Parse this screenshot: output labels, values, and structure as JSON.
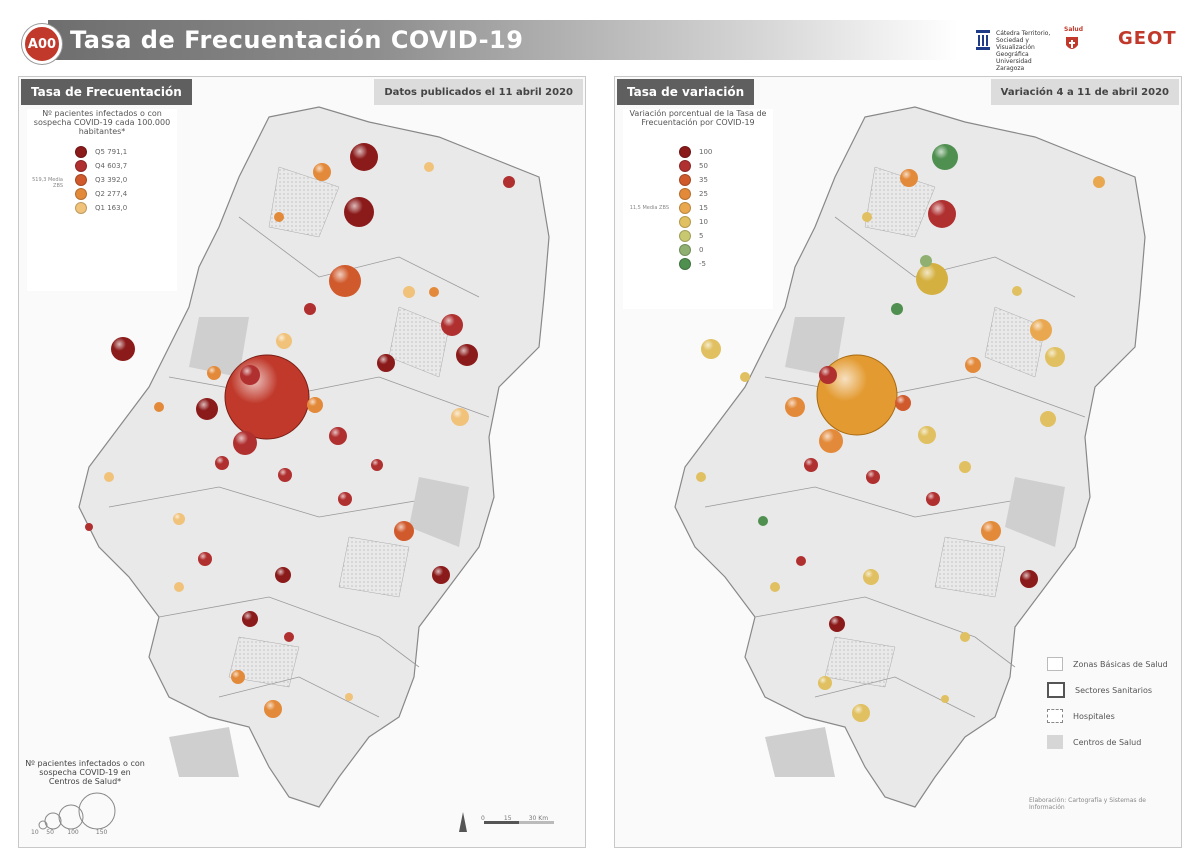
{
  "header": {
    "code": "A00",
    "title": "Tasa de Frecuentación COVID-19",
    "logo_catedra": "Cátedra Territorio, Sociedad y Visualización Geográfica Universidad Zaragoza",
    "logo_salud": "Salud",
    "logo_geot": "GEOT"
  },
  "left_panel": {
    "tag": "Tasa de Frecuentación",
    "date": "Datos publicados el 11 abril 2020",
    "legend_title": "Nº pacientes infectados o con sospecha COVID-19 cada 100.000 habitantes*",
    "median_label": "519,3 Media ZBS",
    "quantiles": [
      {
        "label": "Q5 791,1",
        "color": "#8b1a1a"
      },
      {
        "label": "Q4 603,7",
        "color": "#b03030"
      },
      {
        "label": "Q3 392,0",
        "color": "#d05a2c"
      },
      {
        "label": "Q2 277,4",
        "color": "#e38a3a"
      },
      {
        "label": "Q1 163,0",
        "color": "#f0c27a"
      }
    ],
    "note": "Nº pacientes infectados o con sospecha COVID-19 en Centros de Salud*",
    "size_legend": [
      "10",
      "50",
      "100",
      "150"
    ],
    "scale": [
      "0",
      "15",
      "30 Km"
    ]
  },
  "right_panel": {
    "tag": "Tasa de variación",
    "date": "Variación 4 a 11 de abril 2020",
    "legend_title": "Variación porcentual de la Tasa de Frecuentación por COVID-19",
    "median_label": "11,5 Media ZBS",
    "classes": [
      {
        "label": "100",
        "color": "#8b1a1a"
      },
      {
        "label": "50",
        "color": "#b03030"
      },
      {
        "label": "35",
        "color": "#d05a2c"
      },
      {
        "label": "25",
        "color": "#e38a3a"
      },
      {
        "label": "15",
        "color": "#e9a84f"
      },
      {
        "label": "10",
        "color": "#e0c060"
      },
      {
        "label": "5",
        "color": "#c8c870"
      },
      {
        "label": "0",
        "color": "#8fb070"
      },
      {
        "label": "-5",
        "color": "#4f8f4f"
      }
    ],
    "map_legend": [
      {
        "label": "Zonas Básicas de Salud",
        "style": "zbs"
      },
      {
        "label": "Sectores Sanitarios",
        "style": "sector"
      },
      {
        "label": "Hospitales",
        "style": "hosp"
      },
      {
        "label": "Centros de Salud",
        "style": "cs"
      }
    ],
    "credits": "Elaboración: Cartografía y Sistemas de Información"
  },
  "colors": {
    "accent": "#c0392b",
    "bar": "#6e6e6e",
    "region": "#e6e6e6"
  }
}
